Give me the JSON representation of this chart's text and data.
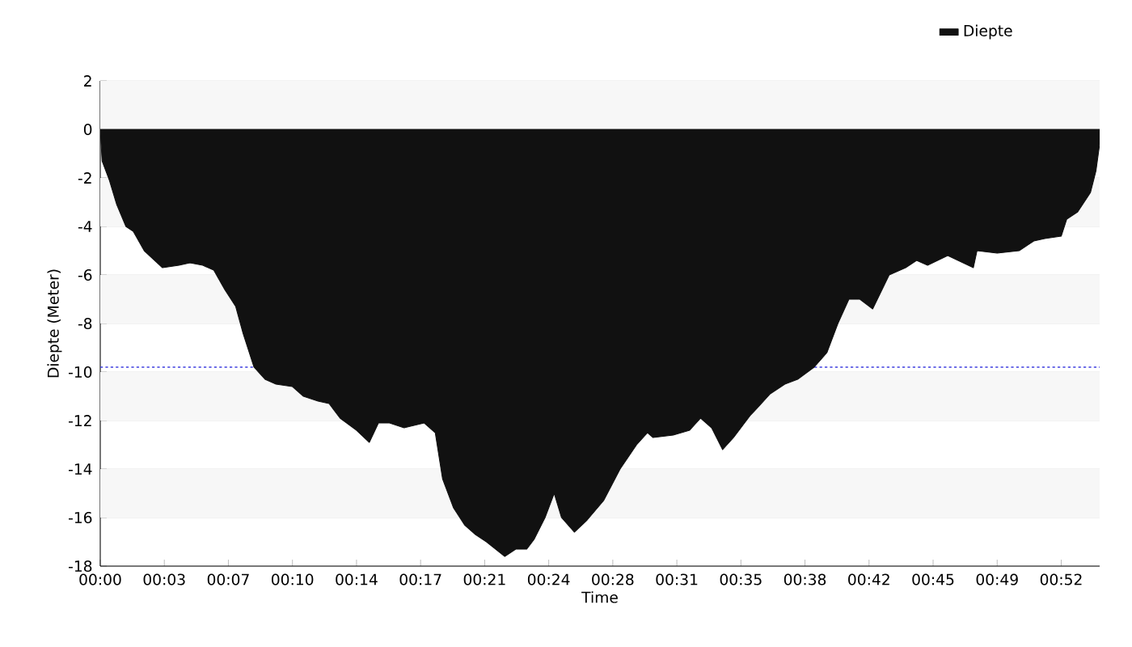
{
  "chart_data": {
    "type": "area",
    "xlabel": "Time",
    "ylabel": "Diepte (Meter)",
    "xlim": [
      0,
      54.6
    ],
    "ylim": [
      -18,
      2
    ],
    "xticks": [
      {
        "value": 0,
        "label": "00:00"
      },
      {
        "value": 3.5,
        "label": "00:03"
      },
      {
        "value": 7,
        "label": "00:07"
      },
      {
        "value": 10.5,
        "label": "00:10"
      },
      {
        "value": 14,
        "label": "00:14"
      },
      {
        "value": 17.5,
        "label": "00:17"
      },
      {
        "value": 21,
        "label": "00:21"
      },
      {
        "value": 24.5,
        "label": "00:24"
      },
      {
        "value": 28,
        "label": "00:28"
      },
      {
        "value": 31.5,
        "label": "00:31"
      },
      {
        "value": 35,
        "label": "00:35"
      },
      {
        "value": 38.5,
        "label": "00:38"
      },
      {
        "value": 42,
        "label": "00:42"
      },
      {
        "value": 45.5,
        "label": "00:45"
      },
      {
        "value": 49,
        "label": "00:49"
      },
      {
        "value": 52.5,
        "label": "00:52"
      }
    ],
    "yticks": [
      -18,
      -16,
      -14,
      -12,
      -10,
      -8,
      -6,
      -4,
      -2,
      0,
      2
    ],
    "grid": "y",
    "legend": "top right",
    "ref_lines": [
      {
        "axis": "y",
        "value": -9.8,
        "color": "#4040e0",
        "line_style": "dotted"
      }
    ],
    "series": [
      {
        "name": "Diepte",
        "color": "#111111",
        "x": [
          0,
          0.1,
          0.5,
          0.9,
          1.4,
          1.8,
          2.4,
          3.4,
          4.3,
          4.9,
          5.6,
          6.2,
          6.8,
          7.4,
          7.8,
          8.4,
          9.0,
          9.6,
          10.5,
          11.1,
          11.9,
          12.5,
          13.1,
          14.0,
          14.7,
          15.2,
          15.8,
          16.6,
          17.7,
          18.3,
          18.7,
          19.3,
          19.9,
          20.5,
          21.1,
          22.1,
          22.7,
          23.3,
          23.7,
          24.3,
          24.8,
          25.2,
          25.9,
          26.6,
          27.5,
          28.4,
          29.3,
          29.9,
          30.2,
          31.3,
          32.2,
          32.8,
          33.4,
          34.0,
          34.6,
          35.5,
          36.0,
          36.6,
          37.4,
          38.1,
          39.0,
          39.7,
          40.3,
          40.9,
          41.5,
          42.2,
          43.1,
          44.0,
          44.6,
          45.2,
          46.3,
          47.7,
          47.9,
          49.0,
          50.2,
          51.0,
          51.6,
          52.5,
          52.8,
          53.4,
          54.1,
          54.4,
          54.6
        ],
        "values": [
          0,
          -1.3,
          -2.1,
          -3.1,
          -4.0,
          -4.2,
          -5.0,
          -5.7,
          -5.6,
          -5.5,
          -5.6,
          -5.8,
          -6.6,
          -7.3,
          -8.4,
          -9.8,
          -10.3,
          -10.5,
          -10.6,
          -11.0,
          -11.2,
          -11.3,
          -11.9,
          -12.4,
          -12.9,
          -12.1,
          -12.1,
          -12.3,
          -12.1,
          -12.5,
          -14.4,
          -15.6,
          -16.3,
          -16.7,
          -17.0,
          -17.6,
          -17.3,
          -17.3,
          -16.9,
          -16.0,
          -15.0,
          -16.0,
          -16.6,
          -16.1,
          -15.3,
          -14.0,
          -13.0,
          -12.5,
          -12.7,
          -12.6,
          -12.4,
          -11.9,
          -12.3,
          -13.2,
          -12.7,
          -11.8,
          -11.4,
          -10.9,
          -10.5,
          -10.3,
          -9.8,
          -9.2,
          -8.0,
          -7.0,
          -7.0,
          -7.4,
          -6.0,
          -5.7,
          -5.4,
          -5.6,
          -5.2,
          -5.7,
          -5.0,
          -5.1,
          -5.0,
          -4.6,
          -4.5,
          -4.4,
          -3.7,
          -3.4,
          -2.6,
          -1.7,
          -0.6
        ]
      }
    ]
  }
}
